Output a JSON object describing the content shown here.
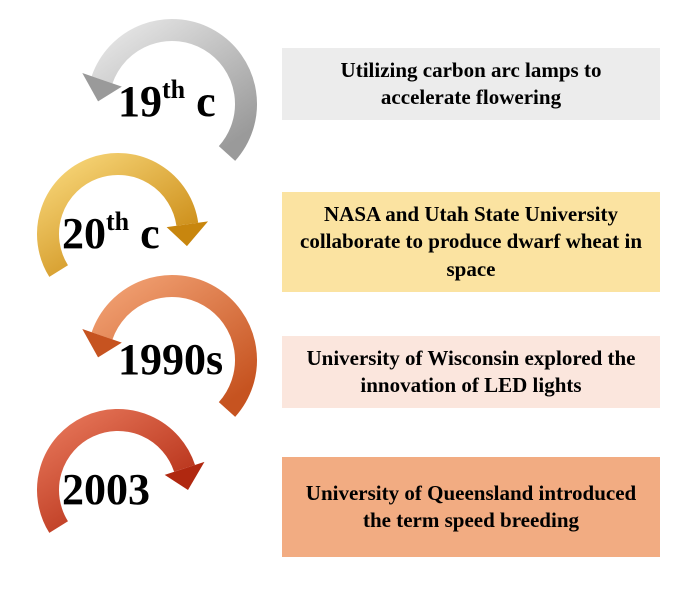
{
  "stages": [
    {
      "era_main": "19",
      "era_sup": "th",
      "era_suffix": " c",
      "text": "Utilizing carbon arc lamps to accelerate flowering",
      "ring_light": "#e8e8e8",
      "ring_dark": "#9a9a9a",
      "box_color": "#ececec"
    },
    {
      "era_main": "20",
      "era_sup": "th",
      "era_suffix": " c",
      "text": "NASA and Utah State University collaborate to produce dwarf wheat in space",
      "ring_light": "#f8d77a",
      "ring_dark": "#c8860e",
      "box_color": "#fbe3a1"
    },
    {
      "era_main": "1990s",
      "era_sup": "",
      "era_suffix": "",
      "text": "University of Wisconsin explored the innovation of LED lights",
      "ring_light": "#f2a274",
      "ring_dark": "#c65320",
      "box_color": "#fbe6dd"
    },
    {
      "era_main": "2003",
      "era_sup": "",
      "era_suffix": "",
      "text": "University of Queensland introduced the term speed breeding",
      "ring_light": "#e7775a",
      "ring_dark": "#b02810",
      "box_color": "#f2ac82"
    }
  ]
}
